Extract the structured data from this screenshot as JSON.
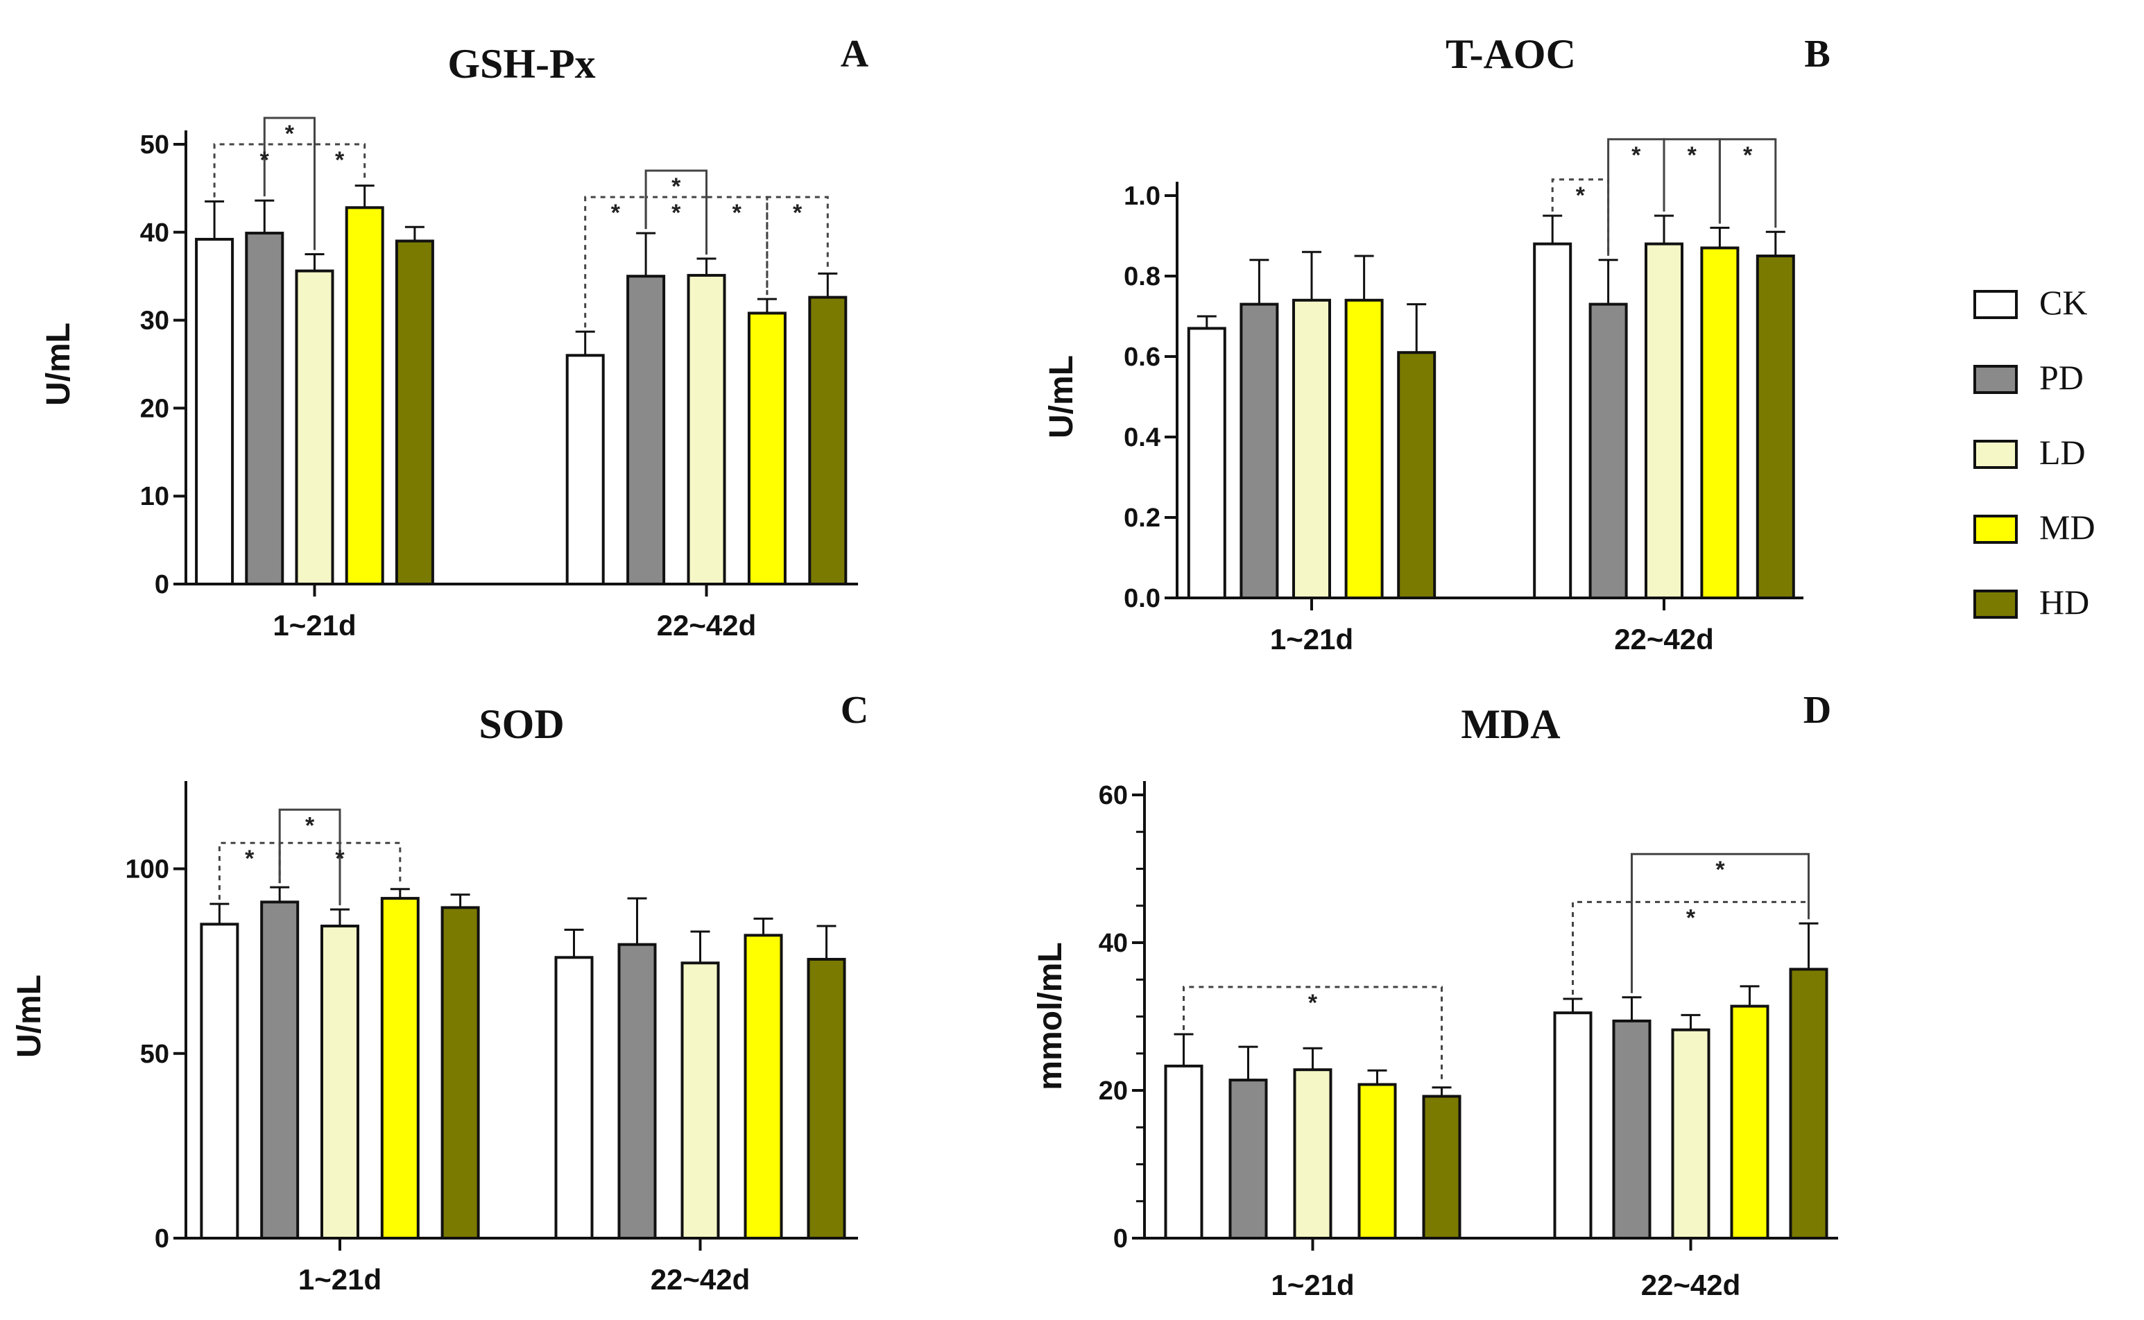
{
  "legend": [
    {
      "name": "CK",
      "color": "#ffffff"
    },
    {
      "name": "PD",
      "color": "#8a8a8a"
    },
    {
      "name": "LD",
      "color": "#f5f8c6"
    },
    {
      "name": "MD",
      "color": "#ffff00"
    },
    {
      "name": "HD",
      "color": "#7a7a00"
    }
  ],
  "chart_data": [
    {
      "id": "A",
      "type": "bar",
      "title": "GSH-Px",
      "letter": "A",
      "ylabel": "U/mL",
      "ylim": [
        0,
        50
      ],
      "yticks": [
        0,
        10,
        20,
        30,
        40,
        50
      ],
      "categories": [
        "1~21d",
        "22~42d"
      ],
      "series": [
        {
          "name": "CK",
          "values": [
            39.2,
            26.0
          ],
          "errors": [
            4.3,
            2.7
          ]
        },
        {
          "name": "PD",
          "values": [
            39.9,
            35.0
          ],
          "errors": [
            3.7,
            4.9
          ]
        },
        {
          "name": "LD",
          "values": [
            35.6,
            35.1
          ],
          "errors": [
            1.9,
            1.9
          ]
        },
        {
          "name": "MD",
          "values": [
            42.8,
            30.8
          ],
          "errors": [
            2.5,
            1.6
          ]
        },
        {
          "name": "HD",
          "values": [
            39.0,
            32.6
          ],
          "errors": [
            1.6,
            2.7
          ]
        }
      ],
      "annotations": [
        {
          "type": "solid",
          "group": 0,
          "from": 2,
          "to": 1,
          "y": 53,
          "star": "*"
        },
        {
          "type": "dotted",
          "group": 0,
          "from": 0,
          "to": 2,
          "y": 50,
          "star": "*"
        },
        {
          "type": "dotted",
          "group": 0,
          "from": 2,
          "to": 3,
          "y": 50,
          "star": "*"
        },
        {
          "type": "solid",
          "group": 1,
          "from": 1,
          "to": 2,
          "y": 47,
          "star": "*"
        },
        {
          "type": "dotted",
          "group": 1,
          "from": 0,
          "to": 1,
          "y": 44,
          "star": "*"
        },
        {
          "type": "dotted",
          "group": 1,
          "from": 1,
          "to": 2,
          "y": 44,
          "star": "*"
        },
        {
          "type": "dotted",
          "group": 1,
          "from": 2,
          "to": 3,
          "y": 44,
          "star": "*"
        },
        {
          "type": "dotted",
          "group": 1,
          "from": 3,
          "to": 4,
          "y": 44,
          "star": "*"
        }
      ]
    },
    {
      "id": "B",
      "type": "bar",
      "title": "T-AOC",
      "letter": "B",
      "ylabel": "U/mL",
      "ylim": [
        0,
        1.0
      ],
      "yticks": [
        0.0,
        0.2,
        0.4,
        0.6,
        0.8,
        1.0
      ],
      "tickFormat": "1dp",
      "categories": [
        "1~21d",
        "22~42d"
      ],
      "series": [
        {
          "name": "CK",
          "values": [
            0.67,
            0.88
          ],
          "errors": [
            0.03,
            0.07
          ]
        },
        {
          "name": "PD",
          "values": [
            0.73,
            0.73
          ],
          "errors": [
            0.11,
            0.11
          ]
        },
        {
          "name": "LD",
          "values": [
            0.74,
            0.88
          ],
          "errors": [
            0.12,
            0.07
          ]
        },
        {
          "name": "MD",
          "values": [
            0.74,
            0.87
          ],
          "errors": [
            0.11,
            0.05
          ]
        },
        {
          "name": "HD",
          "values": [
            0.61,
            0.85
          ],
          "errors": [
            0.12,
            0.06
          ]
        }
      ],
      "annotations": [
        {
          "type": "dotted",
          "group": 1,
          "from": 0,
          "to": 1,
          "y": 1.04,
          "star": "*"
        },
        {
          "type": "solid",
          "group": 1,
          "from": 1,
          "to": 2,
          "y": 1.14,
          "star": "*"
        },
        {
          "type": "solid",
          "group": 1,
          "from": 2,
          "to": 3,
          "y": 1.14,
          "star": "*"
        },
        {
          "type": "solid",
          "group": 1,
          "from": 3,
          "to": 4,
          "y": 1.14,
          "star": "*"
        }
      ]
    },
    {
      "id": "C",
      "type": "bar",
      "title": "SOD",
      "letter": "C",
      "ylabel": "U/mL",
      "ylim": [
        0,
        120
      ],
      "yticks": [
        0,
        50,
        100
      ],
      "categories": [
        "1~21d",
        "22~42d"
      ],
      "series": [
        {
          "name": "CK",
          "values": [
            85,
            76
          ],
          "errors": [
            5.5,
            7.5
          ]
        },
        {
          "name": "PD",
          "values": [
            91,
            79.5
          ],
          "errors": [
            4,
            12.5
          ]
        },
        {
          "name": "LD",
          "values": [
            84.5,
            74.5
          ],
          "errors": [
            4.5,
            8.5
          ]
        },
        {
          "name": "MD",
          "values": [
            92,
            82
          ],
          "errors": [
            2.5,
            4.5
          ]
        },
        {
          "name": "HD",
          "values": [
            89.5,
            75.5
          ],
          "errors": [
            3.5,
            9
          ]
        }
      ],
      "annotations": [
        {
          "type": "solid",
          "group": 0,
          "from": 1,
          "to": 2,
          "y": 116,
          "star": "*"
        },
        {
          "type": "dotted",
          "group": 0,
          "from": 0,
          "to": 1,
          "y": 107,
          "star": "*"
        },
        {
          "type": "dotted",
          "group": 0,
          "from": 1,
          "to": 3,
          "y": 107,
          "star": "*"
        }
      ]
    },
    {
      "id": "D",
      "type": "bar",
      "title": "MDA",
      "letter": "D",
      "ylabel": "mmol/mL",
      "ylim": [
        0,
        60
      ],
      "yticks": [
        0,
        20,
        40,
        60
      ],
      "minorTicks": true,
      "bigCats": true,
      "categories": [
        "1~21d",
        "22~42d"
      ],
      "series": [
        {
          "name": "CK",
          "values": [
            23.3,
            30.5
          ],
          "errors": [
            4.3,
            1.9
          ]
        },
        {
          "name": "PD",
          "values": [
            21.4,
            29.4
          ],
          "errors": [
            4.5,
            3.2
          ]
        },
        {
          "name": "LD",
          "values": [
            22.8,
            28.2
          ],
          "errors": [
            2.9,
            2.0
          ]
        },
        {
          "name": "MD",
          "values": [
            20.8,
            31.4
          ],
          "errors": [
            1.9,
            2.7
          ]
        },
        {
          "name": "HD",
          "values": [
            19.2,
            36.4
          ],
          "errors": [
            1.2,
            6.2
          ]
        }
      ],
      "annotations": [
        {
          "type": "dotted",
          "group": 0,
          "from": 0,
          "to": 4,
          "y": 34,
          "star": "*"
        },
        {
          "type": "solid",
          "group": 1,
          "from": 1,
          "to": 4,
          "y": 52,
          "star": "*"
        },
        {
          "type": "dotted",
          "group": 1,
          "from": 0,
          "to": 4,
          "y": 45.5,
          "star": "*"
        }
      ]
    }
  ]
}
